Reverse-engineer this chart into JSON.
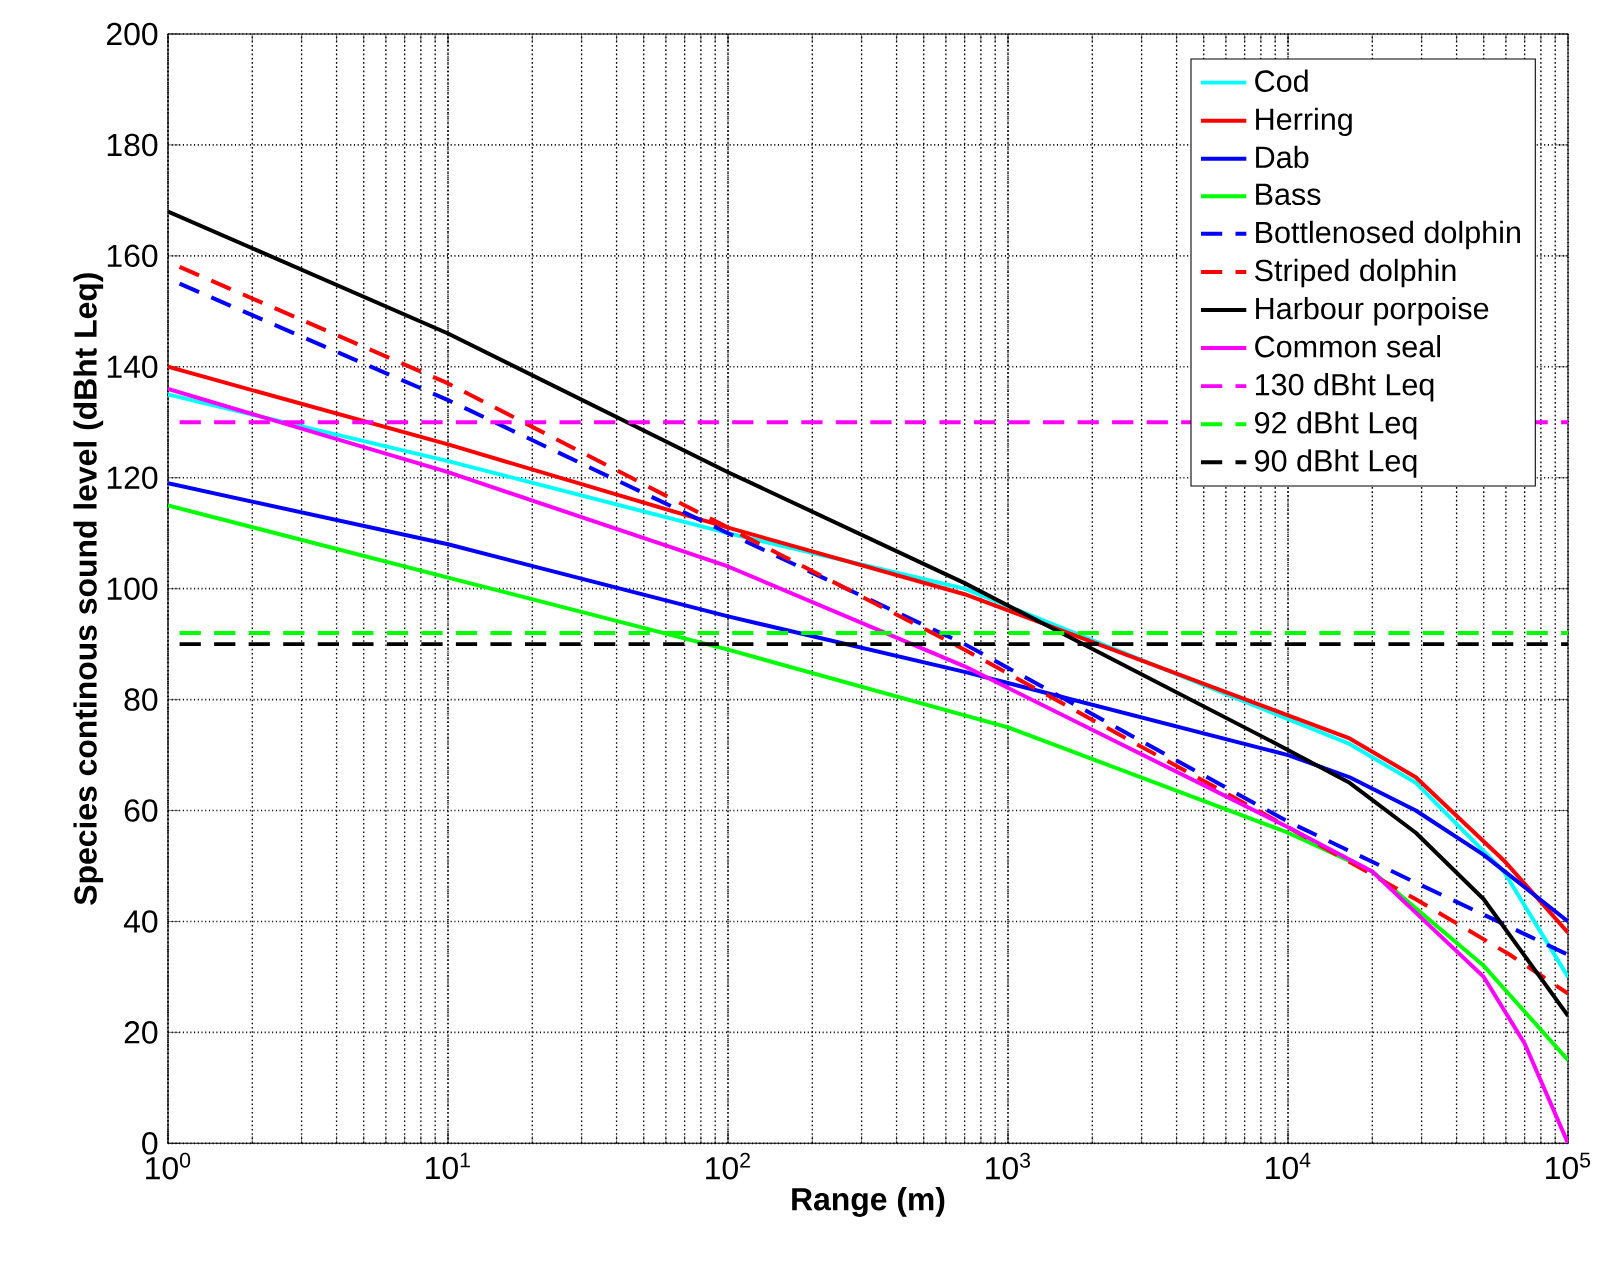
{
  "chart_data": {
    "type": "line",
    "xlabel": "Range (m)",
    "ylabel": "Species continous sound level (dBht Leq)",
    "log": "x",
    "grid": true,
    "legend": "top right",
    "xlim": [
      1,
      100000
    ],
    "ylim": [
      0,
      200
    ],
    "xticks": [
      {
        "value": 1,
        "label": "10$^{0}$"
      },
      {
        "value": 10,
        "label": "10$^{1}$"
      },
      {
        "value": 100,
        "label": "10$^{2}$"
      },
      {
        "value": 1000,
        "label": "10$^{3}$"
      },
      {
        "value": 10000,
        "label": "10$^{4}$"
      },
      {
        "value": 100000,
        "label": "10$^{5}$"
      }
    ],
    "yticks": [
      0,
      20,
      40,
      60,
      80,
      100,
      120,
      140,
      160,
      180,
      200
    ],
    "series": [
      {
        "name": "Cod",
        "color": "#00ffff",
        "line_style": "solid",
        "x": [
          1,
          10,
          100,
          700,
          16600,
          28600,
          59000,
          100000
        ],
        "values": [
          135,
          123,
          110,
          100,
          72,
          65,
          49,
          30
        ]
      },
      {
        "name": "Herring",
        "color": "#ff0000",
        "line_style": "solid",
        "x": [
          1,
          10,
          100,
          700,
          16600,
          28600,
          59000,
          100000
        ],
        "values": [
          140,
          126,
          111,
          99,
          73,
          66,
          51,
          38
        ]
      },
      {
        "name": "Dab",
        "color": "#0000ff",
        "line_style": "solid",
        "x": [
          1,
          10,
          100,
          700,
          10000,
          16600,
          28600,
          50000,
          100000
        ],
        "values": [
          119,
          108,
          95,
          85,
          70,
          66,
          60,
          52,
          40
        ]
      },
      {
        "name": "Bass",
        "color": "#00ff00",
        "line_style": "solid",
        "x": [
          1,
          10,
          100,
          1000,
          10000,
          20000,
          50000,
          100000
        ],
        "values": [
          115,
          102,
          89,
          75,
          56,
          49,
          32,
          15
        ]
      },
      {
        "name": "Bottlenosed dolphin",
        "color": "#0000ff",
        "line_style": "dashed",
        "x": [
          1.1,
          10,
          100,
          700,
          10000,
          28600,
          62000,
          100000
        ],
        "values": [
          155,
          134,
          110,
          90,
          58,
          47,
          39,
          34
        ]
      },
      {
        "name": "Striped dolphin",
        "color": "#ff0000",
        "line_style": "dashed",
        "x": [
          1.1,
          10,
          100,
          700,
          10000,
          28600,
          62000,
          100000
        ],
        "values": [
          158,
          137,
          111,
          89,
          57,
          44,
          34,
          27
        ]
      },
      {
        "name": "Harbour porpoise",
        "color": "#000000",
        "line_style": "solid",
        "x": [
          1,
          10,
          100,
          700,
          9100,
          16600,
          28600,
          50000,
          100000
        ],
        "values": [
          168,
          146,
          121,
          101,
          72,
          65,
          56,
          44,
          23
        ]
      },
      {
        "name": "Common seal",
        "color": "#ff00ff",
        "line_style": "solid",
        "x": [
          1,
          10,
          100,
          700,
          10000,
          20000,
          50000,
          70000,
          100000
        ],
        "values": [
          136,
          121,
          104,
          86,
          57,
          49,
          30,
          18,
          0
        ]
      },
      {
        "name": "130 dBht Leq",
        "color": "#ff00ff",
        "line_style": "dashed",
        "x": [
          1.1,
          100000
        ],
        "values": [
          130,
          130
        ]
      },
      {
        "name": "92 dBht Leq",
        "color": "#00ff00",
        "line_style": "dashed",
        "x": [
          1.1,
          100000
        ],
        "values": [
          92,
          92
        ]
      },
      {
        "name": "90 dBht Leq",
        "color": "#000000",
        "line_style": "dashed",
        "x": [
          1.1,
          100000
        ],
        "values": [
          90,
          90
        ]
      }
    ]
  }
}
